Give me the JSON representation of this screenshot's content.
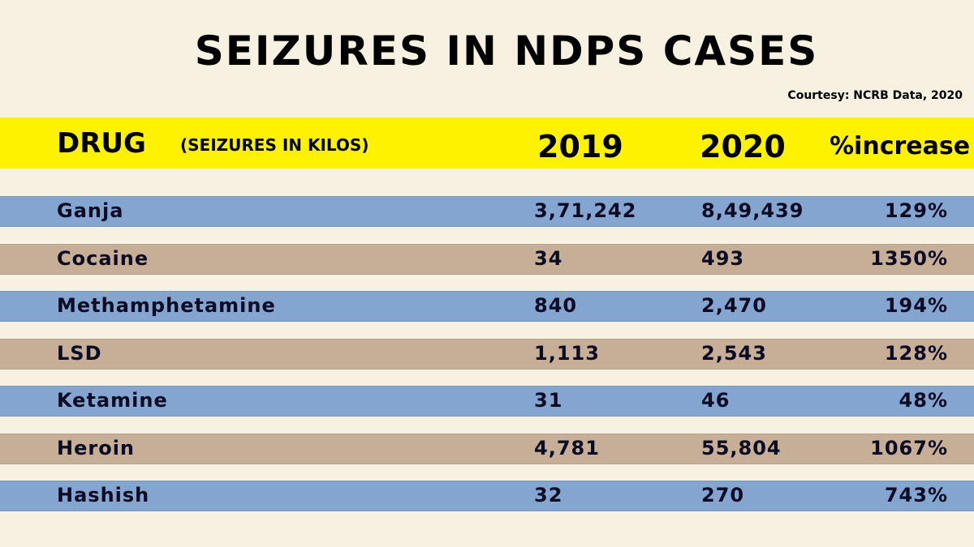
{
  "title": "SEIZURES IN NDPS CASES",
  "credit": "Courtesy: NCRB Data, 2020",
  "colors": {
    "background": "#f7f1e2",
    "header": "#fff200",
    "row_blue": "#83a5cf",
    "row_tan": "#c6ae97"
  },
  "chart_data": {
    "type": "table",
    "columns": {
      "drug": "DRUG",
      "unit": "(SEIZURES IN KILOS)",
      "y2019": "2019",
      "y2020": "2020",
      "pct": "%increase"
    },
    "rows": [
      {
        "drug": "Ganja",
        "y2019": "3,71,242",
        "y2020": "8,49,439",
        "pct": "129%"
      },
      {
        "drug": "Cocaine",
        "y2019": "34",
        "y2020": "493",
        "pct": "1350%"
      },
      {
        "drug": "Methamphetamine",
        "y2019": "840",
        "y2020": "2,470",
        "pct": "194%"
      },
      {
        "drug": "LSD",
        "y2019": "1,113",
        "y2020": "2,543",
        "pct": "128%"
      },
      {
        "drug": "Ketamine",
        "y2019": "31",
        "y2020": "46",
        "pct": "48%"
      },
      {
        "drug": "Heroin",
        "y2019": "4,781",
        "y2020": "55,804",
        "pct": "1067%"
      },
      {
        "drug": "Hashish",
        "y2019": "32",
        "y2020": "270",
        "pct": "743%"
      }
    ]
  }
}
